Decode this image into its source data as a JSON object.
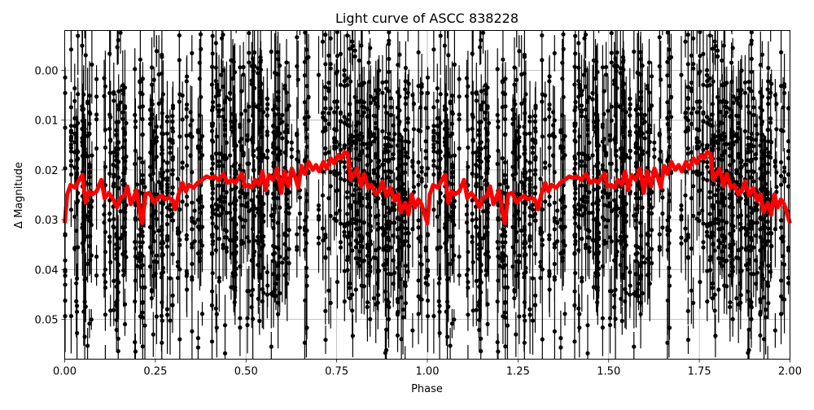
{
  "chart_data": {
    "type": "scatter",
    "title": "Light curve of ASCC 838228",
    "xlabel": "Phase",
    "ylabel": "Δ Magnitude",
    "xlim": [
      0.0,
      2.0
    ],
    "ylim": [
      0.058,
      -0.008
    ],
    "y_inverted": true,
    "grid": true,
    "legend": null,
    "xticks": [
      0.0,
      0.25,
      0.5,
      0.75,
      1.0,
      1.25,
      1.5,
      1.75,
      2.0
    ],
    "xtick_labels": [
      "0.00",
      "0.25",
      "0.50",
      "0.75",
      "1.00",
      "1.25",
      "1.50",
      "1.75",
      "2.00"
    ],
    "yticks": [
      0.0,
      0.01,
      0.02,
      0.03,
      0.04,
      0.05
    ],
    "ytick_labels": [
      "0.00",
      "0.01",
      "0.02",
      "0.03",
      "0.04",
      "0.05"
    ],
    "series": [
      {
        "name": "observations",
        "style": "black points with vertical error bars",
        "color": "#000000",
        "description": "Dense phase-folded photometry repeated over two cycles; values spread across roughly -0.008 to 0.058 mag, clustered in vertical columns"
      },
      {
        "name": "binned mean",
        "style": "thick red line",
        "color": "#ff0000",
        "x": [
          0.0,
          0.007,
          0.016,
          0.029,
          0.04,
          0.049,
          0.058,
          0.067,
          0.076,
          0.088,
          0.101,
          0.11,
          0.121,
          0.132,
          0.144,
          0.153,
          0.164,
          0.173,
          0.182,
          0.189,
          0.198,
          0.207,
          0.214,
          0.223,
          0.234,
          0.247,
          0.256,
          0.267,
          0.276,
          0.287,
          0.298,
          0.305,
          0.314,
          0.325,
          0.334,
          0.343,
          0.355,
          0.366,
          0.379,
          0.391,
          0.402,
          0.413,
          0.424,
          0.438,
          0.449,
          0.46,
          0.471,
          0.48,
          0.489,
          0.496,
          0.507,
          0.516,
          0.525,
          0.536,
          0.545,
          0.554,
          0.563,
          0.574,
          0.586,
          0.597,
          0.606,
          0.617,
          0.626,
          0.635,
          0.644,
          0.653,
          0.662,
          0.673,
          0.684,
          0.693,
          0.702,
          0.713,
          0.722,
          0.734,
          0.743,
          0.754,
          0.763,
          0.772,
          0.781,
          0.788,
          0.797,
          0.806,
          0.817,
          0.826,
          0.837,
          0.846,
          0.858,
          0.867,
          0.876,
          0.887,
          0.898,
          0.91,
          0.919,
          0.927,
          0.939,
          0.948,
          0.957,
          0.966,
          0.975,
          0.984,
          1.0
        ],
        "values": [
          0.0307,
          0.0249,
          0.023,
          0.0236,
          0.022,
          0.021,
          0.0266,
          0.0243,
          0.0249,
          0.0243,
          0.022,
          0.0257,
          0.0246,
          0.0257,
          0.0275,
          0.0257,
          0.0252,
          0.0233,
          0.0269,
          0.0257,
          0.0241,
          0.0285,
          0.0307,
          0.0249,
          0.0246,
          0.0266,
          0.0257,
          0.0252,
          0.0259,
          0.0256,
          0.0261,
          0.0279,
          0.0249,
          0.0226,
          0.0243,
          0.023,
          0.0236,
          0.0226,
          0.022,
          0.0213,
          0.0216,
          0.0213,
          0.022,
          0.0208,
          0.0226,
          0.022,
          0.0226,
          0.0216,
          0.0207,
          0.0233,
          0.023,
          0.0236,
          0.022,
          0.023,
          0.0203,
          0.0241,
          0.021,
          0.022,
          0.0197,
          0.0246,
          0.0203,
          0.0233,
          0.0197,
          0.0213,
          0.0236,
          0.0192,
          0.0208,
          0.0184,
          0.02,
          0.019,
          0.0203,
          0.0184,
          0.0197,
          0.0177,
          0.0187,
          0.017,
          0.0177,
          0.0164,
          0.0167,
          0.022,
          0.021,
          0.0197,
          0.0233,
          0.0208,
          0.0236,
          0.023,
          0.0249,
          0.0243,
          0.0223,
          0.0252,
          0.0236,
          0.0262,
          0.0249,
          0.0285,
          0.0266,
          0.029,
          0.0249,
          0.0275,
          0.0259,
          0.0269,
          0.0307
        ],
        "note": "Curve repeats identically for phase 1.0–2.0"
      }
    ]
  }
}
